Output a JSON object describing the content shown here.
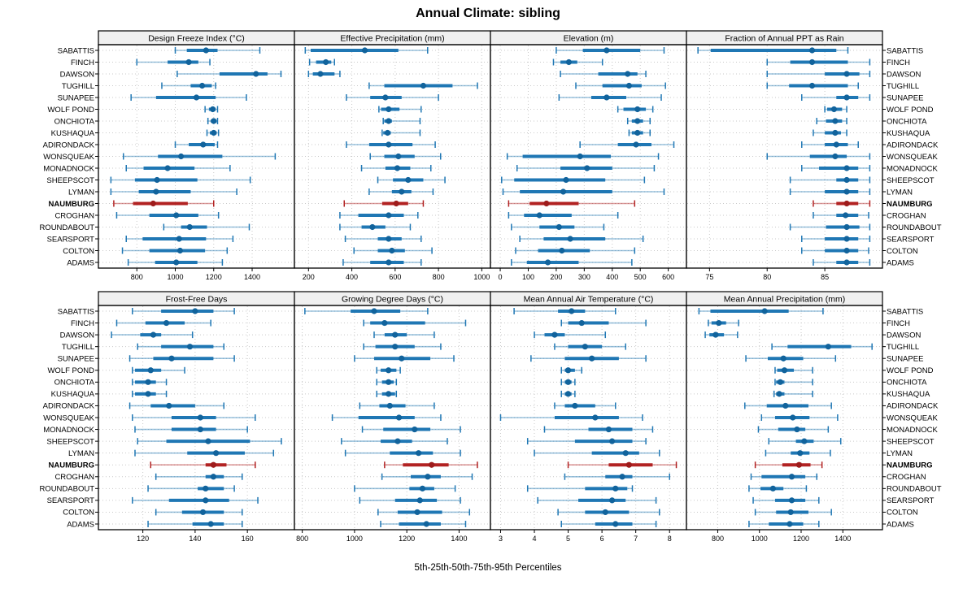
{
  "title": "Annual Climate: sibling",
  "caption": "5th-25th-50th-75th-95th Percentiles",
  "percentile_labels": [
    "5th",
    "25th",
    "50th",
    "75th",
    "95th"
  ],
  "sites": [
    "SABATTIS",
    "FINCH",
    "DAWSON",
    "TUGHILL",
    "SUNAPEE",
    "WOLF POND",
    "ONCHIOTA",
    "KUSHAQUA",
    "ADIRONDACK",
    "WONSQUEAK",
    "MONADNOCK",
    "SHEEPSCOT",
    "LYMAN",
    "NAUMBURG",
    "CROGHAN",
    "ROUNDABOUT",
    "SEARSPORT",
    "COLTON",
    "ADAMS"
  ],
  "highlight_site": "NAUMBURG",
  "colors": {
    "series": "#1f77b4",
    "series_dot": "#11639c",
    "series_light": "rgba(31,119,180,0.45)",
    "highlight": "#b22222",
    "highlight_dot": "#9e1c1c",
    "highlight_light": "rgba(178,34,34,0.45)",
    "header_bg": "#f0f0f0",
    "grid": "#c9c9c9",
    "border": "#000000"
  },
  "chart_data": [
    {
      "type": "dotplot-percentiles",
      "title": "Design Freeze Index (°C)",
      "row": 0,
      "col": 0,
      "xlim": [
        600,
        1620
      ],
      "ticks": [
        800,
        1000,
        1200,
        1400
      ],
      "values": [
        [
          1000,
          1060,
          1160,
          1220,
          1440
        ],
        [
          800,
          960,
          1070,
          1120,
          1180
        ],
        [
          1010,
          1230,
          1420,
          1480,
          1550
        ],
        [
          930,
          1080,
          1140,
          1190,
          1210
        ],
        [
          770,
          900,
          1110,
          1210,
          1370
        ],
        [
          1155,
          1175,
          1195,
          1210,
          1220
        ],
        [
          1170,
          1185,
          1200,
          1215,
          1220
        ],
        [
          1165,
          1180,
          1200,
          1215,
          1225
        ],
        [
          1000,
          1070,
          1145,
          1205,
          1220
        ],
        [
          730,
          910,
          1030,
          1245,
          1520
        ],
        [
          745,
          835,
          960,
          1100,
          1285
        ],
        [
          665,
          790,
          905,
          1115,
          1390
        ],
        [
          665,
          810,
          900,
          1080,
          1320
        ],
        [
          680,
          780,
          885,
          1065,
          1200
        ],
        [
          695,
          865,
          1005,
          1120,
          1225
        ],
        [
          940,
          1030,
          1075,
          1165,
          1385
        ],
        [
          745,
          830,
          1020,
          1160,
          1300
        ],
        [
          725,
          865,
          1025,
          1155,
          1270
        ],
        [
          755,
          895,
          1005,
          1115,
          1245
        ]
      ]
    },
    {
      "type": "dotplot-percentiles",
      "title": "Effective Precipitation (mm)",
      "row": 0,
      "col": 1,
      "xlim": [
        135,
        1040
      ],
      "ticks": [
        200,
        400,
        600,
        800,
        1000
      ],
      "values": [
        [
          185,
          210,
          460,
          615,
          750
        ],
        [
          205,
          235,
          280,
          305,
          320
        ],
        [
          200,
          220,
          255,
          320,
          345
        ],
        [
          480,
          550,
          730,
          865,
          980
        ],
        [
          375,
          485,
          555,
          630,
          800
        ],
        [
          525,
          535,
          570,
          620,
          720
        ],
        [
          545,
          550,
          570,
          585,
          715
        ],
        [
          540,
          545,
          565,
          580,
          715
        ],
        [
          375,
          480,
          570,
          680,
          785
        ],
        [
          485,
          550,
          615,
          690,
          810
        ],
        [
          445,
          555,
          610,
          670,
          765
        ],
        [
          520,
          590,
          660,
          730,
          830
        ],
        [
          480,
          585,
          630,
          675,
          775
        ],
        [
          365,
          540,
          605,
          660,
          730
        ],
        [
          345,
          430,
          570,
          640,
          705
        ],
        [
          345,
          445,
          495,
          555,
          670
        ],
        [
          370,
          520,
          570,
          630,
          720
        ],
        [
          410,
          520,
          585,
          645,
          770
        ],
        [
          360,
          485,
          570,
          640,
          720
        ]
      ]
    },
    {
      "type": "dotplot-percentiles",
      "title": "Elevation (m)",
      "row": 0,
      "col": 2,
      "xlim": [
        -35,
        665
      ],
      "ticks": [
        0,
        100,
        200,
        300,
        400,
        500,
        600
      ],
      "values": [
        [
          200,
          295,
          380,
          500,
          585
        ],
        [
          190,
          215,
          245,
          275,
          365
        ],
        [
          215,
          350,
          455,
          490,
          520
        ],
        [
          270,
          365,
          460,
          505,
          590
        ],
        [
          210,
          325,
          380,
          450,
          575
        ],
        [
          420,
          440,
          490,
          520,
          545
        ],
        [
          455,
          470,
          490,
          510,
          535
        ],
        [
          460,
          470,
          490,
          510,
          535
        ],
        [
          285,
          420,
          485,
          540,
          620
        ],
        [
          25,
          80,
          285,
          395,
          565
        ],
        [
          60,
          215,
          310,
          400,
          550
        ],
        [
          5,
          50,
          235,
          375,
          515
        ],
        [
          10,
          70,
          225,
          400,
          585
        ],
        [
          30,
          105,
          165,
          280,
          480
        ],
        [
          30,
          85,
          140,
          255,
          420
        ],
        [
          40,
          140,
          210,
          265,
          370
        ],
        [
          70,
          155,
          250,
          375,
          510
        ],
        [
          55,
          135,
          220,
          320,
          480
        ],
        [
          40,
          95,
          170,
          280,
          470
        ]
      ]
    },
    {
      "type": "dotplot-percentiles",
      "title": "Fraction of Annual PPT as Rain",
      "row": 0,
      "col": 3,
      "xlim": [
        73,
        90
      ],
      "ticks": [
        75,
        80,
        85
      ],
      "values": [
        [
          74,
          75.1,
          83.9,
          86,
          87
        ],
        [
          80,
          82,
          83.9,
          87,
          88.9
        ],
        [
          80,
          85,
          86.9,
          88,
          88.9
        ],
        [
          80,
          81.9,
          83.9,
          87,
          87.9
        ],
        [
          83,
          86,
          86.9,
          87.9,
          88.9
        ],
        [
          85,
          85.2,
          85.8,
          86.5,
          86.9
        ],
        [
          84.3,
          85.1,
          85.9,
          86.5,
          86.9
        ],
        [
          84,
          85,
          85.9,
          86.4,
          86.9
        ],
        [
          83,
          85,
          86,
          87,
          87.9
        ],
        [
          80,
          83.7,
          85.9,
          86.9,
          88.9
        ],
        [
          83,
          84.5,
          86.9,
          87.9,
          88.9
        ],
        [
          82,
          86,
          86.9,
          87.9,
          88.9
        ],
        [
          82,
          85,
          86.9,
          87.9,
          88.9
        ],
        [
          84,
          86,
          86.9,
          87.9,
          88.9
        ],
        [
          84,
          86,
          86.8,
          87.9,
          88.8
        ],
        [
          82,
          85.1,
          86.9,
          88,
          88.9
        ],
        [
          83,
          85,
          86.9,
          87.9,
          88.9
        ],
        [
          83,
          85,
          86.9,
          87.9,
          88.8
        ],
        [
          84,
          86,
          86.9,
          87.9,
          88.9
        ]
      ]
    },
    {
      "type": "dotplot-percentiles",
      "title": "Frost-Free Days",
      "row": 1,
      "col": 0,
      "xlim": [
        103,
        178
      ],
      "ticks": [
        120,
        140,
        160
      ],
      "values": [
        [
          116,
          127,
          140,
          147,
          155
        ],
        [
          110,
          121,
          129,
          136,
          146
        ],
        [
          108,
          119,
          124,
          127,
          139
        ],
        [
          118,
          127,
          138,
          147,
          151
        ],
        [
          115,
          124,
          131,
          147,
          155
        ],
        [
          116,
          117,
          123,
          127,
          136
        ],
        [
          116,
          117,
          122,
          125,
          129
        ],
        [
          116,
          117,
          122,
          125,
          129
        ],
        [
          115,
          123,
          130,
          140,
          151
        ],
        [
          116,
          131,
          142,
          148,
          163
        ],
        [
          117,
          131,
          142,
          148,
          160
        ],
        [
          118,
          129,
          145,
          161,
          173
        ],
        [
          117,
          137,
          148,
          159,
          170
        ],
        [
          123,
          144,
          147,
          152,
          163
        ],
        [
          125,
          144,
          147,
          151,
          158
        ],
        [
          122,
          141,
          144,
          151,
          155
        ],
        [
          116,
          130,
          144,
          153,
          164
        ],
        [
          125,
          135,
          143,
          151,
          158
        ],
        [
          122,
          139,
          146,
          151,
          158
        ]
      ]
    },
    {
      "type": "dotplot-percentiles",
      "title": "Growing Degree Days (°C)",
      "row": 1,
      "col": 1,
      "xlim": [
        770,
        1520
      ],
      "ticks": [
        800,
        1000,
        1200,
        1400
      ],
      "values": [
        [
          810,
          985,
          1075,
          1175,
          1280
        ],
        [
          1035,
          1060,
          1115,
          1270,
          1425
        ],
        [
          1075,
          1115,
          1155,
          1200,
          1305
        ],
        [
          1035,
          1080,
          1155,
          1230,
          1330
        ],
        [
          1000,
          1075,
          1180,
          1290,
          1380
        ],
        [
          1085,
          1100,
          1130,
          1160,
          1175
        ],
        [
          1085,
          1105,
          1130,
          1150,
          1160
        ],
        [
          1085,
          1105,
          1130,
          1155,
          1160
        ],
        [
          1020,
          1095,
          1135,
          1195,
          1305
        ],
        [
          915,
          1015,
          1170,
          1230,
          1330
        ],
        [
          1030,
          1110,
          1230,
          1290,
          1405
        ],
        [
          950,
          1100,
          1165,
          1220,
          1355
        ],
        [
          965,
          1135,
          1245,
          1300,
          1405
        ],
        [
          1115,
          1185,
          1295,
          1360,
          1470
        ],
        [
          1105,
          1215,
          1280,
          1330,
          1450
        ],
        [
          1000,
          1210,
          1260,
          1305,
          1385
        ],
        [
          1020,
          1155,
          1250,
          1315,
          1405
        ],
        [
          1090,
          1165,
          1240,
          1335,
          1440
        ],
        [
          1100,
          1170,
          1275,
          1330,
          1425
        ]
      ]
    },
    {
      "type": "dotplot-percentiles",
      "title": "Mean Annual Air Temperature (°C)",
      "row": 1,
      "col": 2,
      "xlim": [
        2.7,
        8.5
      ],
      "ticks": [
        3,
        4,
        5,
        6,
        7,
        8
      ],
      "values": [
        [
          3.4,
          4.7,
          5.1,
          5.5,
          6.4
        ],
        [
          4.8,
          5.0,
          5.4,
          6.2,
          7.3
        ],
        [
          4.0,
          4.3,
          4.6,
          4.9,
          6.1
        ],
        [
          4.6,
          5.0,
          5.5,
          6.0,
          6.7
        ],
        [
          3.9,
          4.9,
          5.7,
          6.5,
          7.3
        ],
        [
          4.8,
          4.9,
          5.0,
          5.2,
          5.4
        ],
        [
          4.8,
          4.9,
          5.0,
          5.1,
          5.2
        ],
        [
          4.8,
          4.9,
          5.0,
          5.1,
          5.2
        ],
        [
          4.6,
          4.9,
          5.2,
          5.8,
          6.4
        ],
        [
          3.0,
          4.6,
          5.8,
          6.5,
          7.2
        ],
        [
          4.3,
          5.6,
          6.2,
          6.9,
          7.5
        ],
        [
          3.8,
          5.2,
          6.3,
          6.9,
          7.3
        ],
        [
          4.0,
          5.7,
          6.7,
          7.1,
          7.7
        ],
        [
          5.0,
          6.2,
          6.8,
          7.5,
          8.2
        ],
        [
          4.9,
          6.1,
          6.6,
          6.9,
          8.0
        ],
        [
          3.8,
          5.5,
          6.4,
          6.75,
          6.9
        ],
        [
          4.1,
          5.3,
          6.3,
          6.7,
          7.6
        ],
        [
          4.7,
          5.5,
          6.1,
          6.8,
          7.7
        ],
        [
          4.8,
          5.8,
          6.4,
          6.9,
          7.6
        ]
      ]
    },
    {
      "type": "dotplot-percentiles",
      "title": "Mean Annual Precipitation (mm)",
      "row": 1,
      "col": 3,
      "xlim": [
        650,
        1590
      ],
      "ticks": [
        800,
        1000,
        1200,
        1400
      ],
      "values": [
        [
          710,
          765,
          1025,
          1140,
          1305
        ],
        [
          755,
          770,
          805,
          840,
          900
        ],
        [
          740,
          760,
          790,
          830,
          895
        ],
        [
          1060,
          1135,
          1330,
          1440,
          1540
        ],
        [
          935,
          1040,
          1115,
          1210,
          1365
        ],
        [
          1075,
          1085,
          1120,
          1165,
          1255
        ],
        [
          1075,
          1080,
          1100,
          1120,
          1255
        ],
        [
          1070,
          1080,
          1095,
          1120,
          1255
        ],
        [
          930,
          1035,
          1125,
          1235,
          1345
        ],
        [
          1010,
          1075,
          1160,
          1240,
          1375
        ],
        [
          995,
          1090,
          1180,
          1220,
          1330
        ],
        [
          1045,
          1175,
          1215,
          1260,
          1390
        ],
        [
          1030,
          1150,
          1195,
          1240,
          1340
        ],
        [
          980,
          1110,
          1190,
          1245,
          1300
        ],
        [
          960,
          1010,
          1155,
          1220,
          1275
        ],
        [
          950,
          1005,
          1065,
          1115,
          1225
        ],
        [
          970,
          1075,
          1155,
          1220,
          1285
        ],
        [
          980,
          1080,
          1150,
          1235,
          1345
        ],
        [
          950,
          1045,
          1145,
          1210,
          1285
        ]
      ]
    }
  ]
}
